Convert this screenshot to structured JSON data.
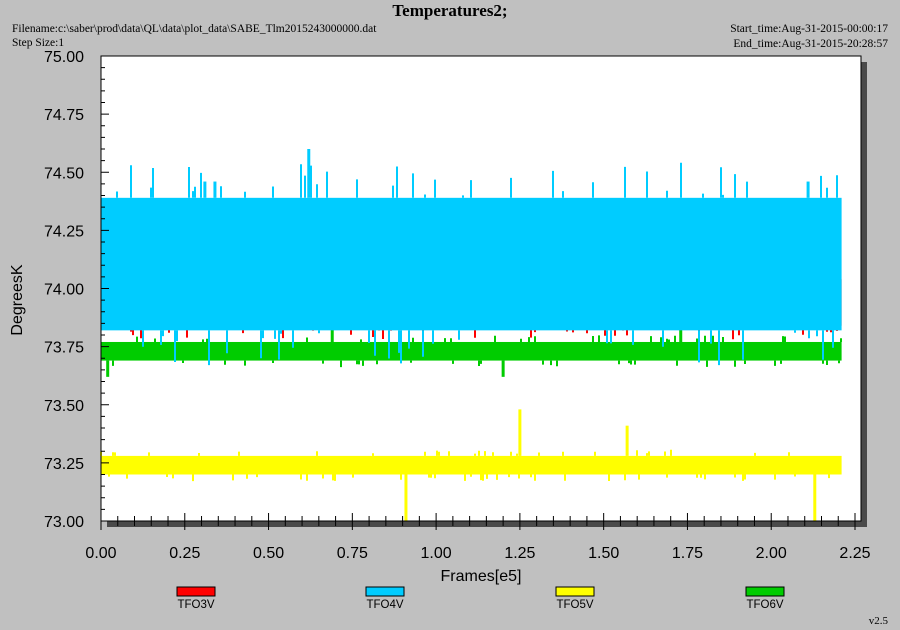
{
  "header": {
    "title": "Temperatures2;",
    "filename": "Filename:c:\\saber\\prod\\data\\QL\\data\\plot_data\\SABE_Tlm2015243000000.dat",
    "step_size": "Step Size:1",
    "start_time": "Start_time:Aug-31-2015-00:00:17",
    "end_time": "End_time:Aug-31-2015-20:28:57",
    "version": "v2.5"
  },
  "chart_data": {
    "type": "line",
    "title": "Temperatures2;",
    "xlabel": "Frames[e5]",
    "ylabel": "DegreesK",
    "xlim": [
      0.0,
      2.3
    ],
    "ylim": [
      73.0,
      75.0
    ],
    "x_ticks": [
      "0.00",
      "0.25",
      "0.50",
      "0.75",
      "1.00",
      "1.25",
      "1.50",
      "1.75",
      "2.00",
      "2.25"
    ],
    "y_ticks": [
      "73.00",
      "73.25",
      "73.50",
      "73.75",
      "74.00",
      "74.25",
      "74.50",
      "74.75",
      "75.00"
    ],
    "grid": false,
    "legend_position": "bottom",
    "x_range": [
      0.0,
      2.21
    ],
    "series": [
      {
        "name": "TFO3V",
        "color": "#ff0000",
        "band": [
          73.84,
          74.04
        ],
        "spikes": [
          {
            "x": 0.07,
            "y": 73.97
          },
          {
            "x": 0.12,
            "y": 73.97
          },
          {
            "x": 0.21,
            "y": 73.97
          },
          {
            "x": 0.32,
            "y": 73.97
          },
          {
            "x": 0.5,
            "y": 73.97
          },
          {
            "x": 0.67,
            "y": 74.03
          },
          {
            "x": 0.69,
            "y": 74.03
          },
          {
            "x": 0.91,
            "y": 73.97
          },
          {
            "x": 1.06,
            "y": 73.97
          },
          {
            "x": 1.21,
            "y": 73.97
          },
          {
            "x": 1.36,
            "y": 73.97
          },
          {
            "x": 1.54,
            "y": 73.97
          },
          {
            "x": 1.62,
            "y": 73.97
          },
          {
            "x": 1.81,
            "y": 73.97
          },
          {
            "x": 1.96,
            "y": 73.97
          },
          {
            "x": 2.2,
            "y": 73.97
          }
        ]
      },
      {
        "name": "TFO4V",
        "color": "#00ccff",
        "band": [
          73.82,
          74.39
        ],
        "spikes": [
          {
            "x": 0.31,
            "y": 74.46
          },
          {
            "x": 0.34,
            "y": 74.46
          },
          {
            "x": 0.62,
            "y": 74.6
          },
          {
            "x": 2.11,
            "y": 74.46
          }
        ]
      },
      {
        "name": "TFO5V",
        "color": "#ffff00",
        "band": [
          73.2,
          73.28
        ],
        "spikes": [
          {
            "x": 0.91,
            "y": 73.0
          },
          {
            "x": 1.25,
            "y": 73.48
          },
          {
            "x": 1.57,
            "y": 73.41
          },
          {
            "x": 2.13,
            "y": 73.0
          }
        ]
      },
      {
        "name": "TFO6V",
        "color": "#00cc00",
        "band": [
          73.69,
          73.77
        ],
        "spikes": [
          {
            "x": 0.69,
            "y": 74.11
          },
          {
            "x": 1.2,
            "y": 73.62
          },
          {
            "x": 1.73,
            "y": 74.18
          },
          {
            "x": 0.02,
            "y": 73.62
          }
        ]
      }
    ]
  }
}
